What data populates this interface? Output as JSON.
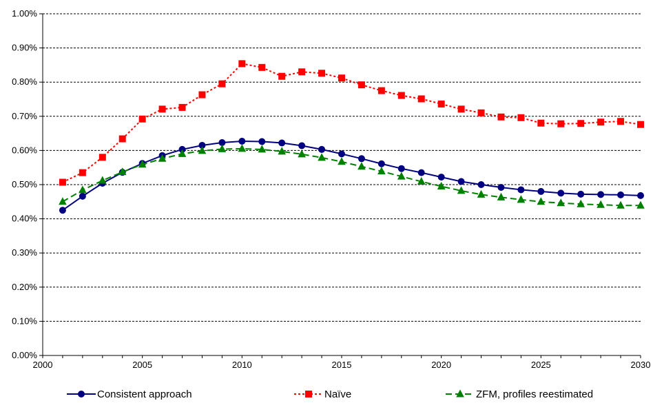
{
  "chart_data": {
    "type": "line",
    "title": "",
    "xlabel": "",
    "ylabel": "",
    "xlim": [
      2000,
      2030
    ],
    "ylim": [
      0.0,
      1.0
    ],
    "x_ticks": [
      2000,
      2005,
      2010,
      2015,
      2020,
      2025,
      2030
    ],
    "x_tick_labels": [
      "2000",
      "2005",
      "2010",
      "2015",
      "2020",
      "2025",
      "2030"
    ],
    "y_ticks": [
      0.0,
      0.1,
      0.2,
      0.3,
      0.4,
      0.5,
      0.6,
      0.7,
      0.8,
      0.9,
      1.0
    ],
    "y_tick_labels": [
      "0.00%",
      "0.10%",
      "0.20%",
      "0.30%",
      "0.40%",
      "0.50%",
      "0.60%",
      "0.70%",
      "0.80%",
      "0.90%",
      "1.00%"
    ],
    "grid": "horizontal dashed",
    "legend_position": "bottom",
    "x": [
      2001,
      2002,
      2003,
      2004,
      2005,
      2006,
      2007,
      2008,
      2009,
      2010,
      2011,
      2012,
      2013,
      2014,
      2015,
      2016,
      2017,
      2018,
      2019,
      2020,
      2021,
      2022,
      2023,
      2024,
      2025,
      2026,
      2027,
      2028,
      2029,
      2030
    ],
    "series": [
      {
        "name": "Consistent approach",
        "color": "#000080",
        "line_style": "solid",
        "marker": "circle",
        "values": [
          0.425,
          0.466,
          0.504,
          0.536,
          0.562,
          0.585,
          0.603,
          0.615,
          0.623,
          0.627,
          0.626,
          0.622,
          0.614,
          0.603,
          0.59,
          0.576,
          0.561,
          0.547,
          0.535,
          0.522,
          0.509,
          0.5,
          0.492,
          0.485,
          0.48,
          0.475,
          0.472,
          0.471,
          0.47,
          0.468
        ]
      },
      {
        "name": "Naïve",
        "color": "#ff0000",
        "line_style": "dotted",
        "marker": "square",
        "values": [
          0.507,
          0.535,
          0.58,
          0.634,
          0.692,
          0.721,
          0.726,
          0.763,
          0.795,
          0.854,
          0.843,
          0.817,
          0.83,
          0.826,
          0.812,
          0.792,
          0.775,
          0.761,
          0.751,
          0.736,
          0.721,
          0.71,
          0.698,
          0.696,
          0.68,
          0.678,
          0.679,
          0.683,
          0.685,
          0.676
        ]
      },
      {
        "name": "ZFM, profiles reestimated",
        "color": "#008000",
        "line_style": "dashed",
        "marker": "triangle",
        "values": [
          0.45,
          0.484,
          0.512,
          0.537,
          0.559,
          0.576,
          0.59,
          0.599,
          0.604,
          0.605,
          0.603,
          0.597,
          0.589,
          0.579,
          0.567,
          0.553,
          0.539,
          0.524,
          0.509,
          0.495,
          0.482,
          0.471,
          0.463,
          0.456,
          0.45,
          0.446,
          0.443,
          0.441,
          0.439,
          0.439
        ]
      }
    ]
  }
}
